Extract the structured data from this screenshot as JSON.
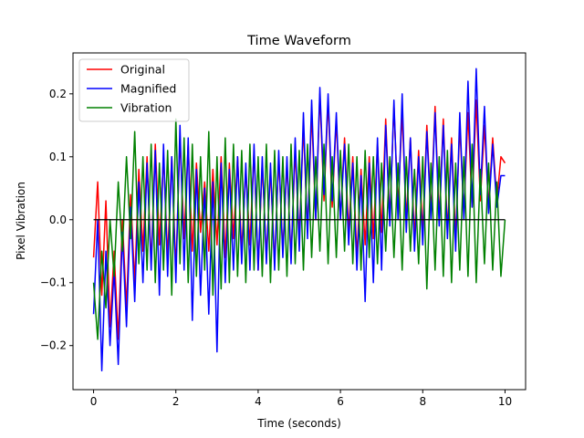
{
  "chart_data": {
    "type": "line",
    "title": "Time Waveform",
    "xlabel": "Time (seconds)",
    "ylabel": "Pixel Vibration",
    "xlim": [
      -0.5,
      10.5
    ],
    "ylim": [
      -0.27,
      0.265
    ],
    "xticks": [
      0,
      2,
      4,
      6,
      8,
      10
    ],
    "yticks": [
      -0.2,
      -0.1,
      0.0,
      0.1,
      0.2
    ],
    "xtick_labels": [
      "0",
      "2",
      "4",
      "6",
      "8",
      "10"
    ],
    "ytick_labels": [
      "−0.2",
      "−0.1",
      "0.0",
      "0.1",
      "0.2"
    ],
    "legend_position": "top-left",
    "baseline": {
      "name": "zero-line",
      "y": 0,
      "color": "#000000"
    },
    "series": [
      {
        "name": "Original",
        "color": "#ff0000",
        "x": [
          0,
          0.1,
          0.2,
          0.3,
          0.4,
          0.5,
          0.6,
          0.7,
          0.8,
          0.9,
          1,
          1.1,
          1.2,
          1.3,
          1.4,
          1.5,
          1.6,
          1.7,
          1.8,
          1.9,
          2,
          2.1,
          2.2,
          2.3,
          2.4,
          2.5,
          2.6,
          2.7,
          2.8,
          2.9,
          3,
          3.1,
          3.2,
          3.3,
          3.4,
          3.5,
          3.6,
          3.7,
          3.8,
          3.9,
          4,
          4.1,
          4.2,
          4.3,
          4.4,
          4.5,
          4.6,
          4.7,
          4.8,
          4.9,
          5,
          5.1,
          5.2,
          5.3,
          5.4,
          5.5,
          5.6,
          5.7,
          5.8,
          5.9,
          6,
          6.1,
          6.2,
          6.3,
          6.4,
          6.5,
          6.6,
          6.7,
          6.8,
          6.9,
          7,
          7.1,
          7.2,
          7.3,
          7.4,
          7.5,
          7.6,
          7.7,
          7.8,
          7.9,
          8,
          8.1,
          8.2,
          8.3,
          8.4,
          8.5,
          8.6,
          8.7,
          8.8,
          8.9,
          9,
          9.1,
          9.2,
          9.3,
          9.4,
          9.5,
          9.6,
          9.7,
          9.8,
          9.9,
          10
        ],
        "y": [
          -0.06,
          0.06,
          -0.12,
          0.03,
          -0.17,
          -0.05,
          -0.19,
          0.0,
          -0.14,
          0.04,
          -0.1,
          0.08,
          -0.05,
          0.1,
          -0.07,
          0.12,
          -0.04,
          0.1,
          -0.06,
          0.1,
          -0.08,
          0.13,
          -0.03,
          0.12,
          -0.05,
          0.09,
          -0.02,
          0.06,
          -0.05,
          0.08,
          -0.04,
          0.1,
          -0.06,
          0.09,
          -0.03,
          0.1,
          -0.05,
          0.08,
          -0.04,
          0.11,
          -0.08,
          0.09,
          -0.06,
          0.08,
          -0.07,
          0.1,
          -0.05,
          0.09,
          -0.06,
          0.11,
          -0.03,
          0.15,
          -0.02,
          0.17,
          0.0,
          0.2,
          0.03,
          0.19,
          0.02,
          0.16,
          0.0,
          0.13,
          -0.02,
          0.1,
          -0.06,
          0.08,
          -0.04,
          0.1,
          -0.03,
          0.12,
          -0.02,
          0.16,
          0.0,
          0.18,
          0.02,
          0.17,
          0.0,
          0.13,
          -0.03,
          0.11,
          -0.02,
          0.15,
          0.01,
          0.18,
          0.0,
          0.16,
          -0.02,
          0.13,
          -0.03,
          0.15,
          0.01,
          0.17,
          0.02,
          0.19,
          0.03,
          0.15,
          0.02,
          0.13,
          0.03,
          0.1,
          0.09
        ]
      },
      {
        "name": "Magnified",
        "color": "#0000ff",
        "x": [
          0,
          0.1,
          0.2,
          0.3,
          0.4,
          0.5,
          0.6,
          0.7,
          0.8,
          0.9,
          1,
          1.1,
          1.2,
          1.3,
          1.4,
          1.5,
          1.6,
          1.7,
          1.8,
          1.9,
          2,
          2.1,
          2.2,
          2.3,
          2.4,
          2.5,
          2.6,
          2.7,
          2.8,
          2.9,
          3,
          3.1,
          3.2,
          3.3,
          3.4,
          3.5,
          3.6,
          3.7,
          3.8,
          3.9,
          4,
          4.1,
          4.2,
          4.3,
          4.4,
          4.5,
          4.6,
          4.7,
          4.8,
          4.9,
          5,
          5.1,
          5.2,
          5.3,
          5.4,
          5.5,
          5.6,
          5.7,
          5.8,
          5.9,
          6,
          6.1,
          6.2,
          6.3,
          6.4,
          6.5,
          6.6,
          6.7,
          6.8,
          6.9,
          7,
          7.1,
          7.2,
          7.3,
          7.4,
          7.5,
          7.6,
          7.7,
          7.8,
          7.9,
          8,
          8.1,
          8.2,
          8.3,
          8.4,
          8.5,
          8.6,
          8.7,
          8.8,
          8.9,
          9,
          9.1,
          9.2,
          9.3,
          9.4,
          9.5,
          9.6,
          9.7,
          9.8,
          9.9,
          10
        ],
        "y": [
          -0.15,
          0.0,
          -0.24,
          -0.05,
          -0.2,
          -0.08,
          -0.23,
          -0.02,
          -0.17,
          0.02,
          -0.13,
          0.06,
          -0.1,
          0.09,
          -0.08,
          0.11,
          -0.12,
          0.12,
          -0.09,
          0.1,
          -0.1,
          0.15,
          -0.08,
          0.13,
          -0.16,
          0.08,
          -0.12,
          0.05,
          -0.15,
          0.06,
          -0.21,
          0.09,
          -0.1,
          0.08,
          -0.08,
          0.1,
          -0.07,
          0.09,
          -0.08,
          0.12,
          -0.08,
          0.1,
          -0.07,
          0.09,
          -0.08,
          0.11,
          -0.06,
          0.1,
          -0.07,
          0.13,
          -0.05,
          0.17,
          -0.03,
          0.19,
          0.0,
          0.21,
          0.04,
          0.2,
          0.03,
          0.17,
          0.0,
          0.12,
          -0.04,
          0.09,
          -0.08,
          0.07,
          -0.13,
          0.09,
          -0.1,
          0.13,
          -0.08,
          0.15,
          -0.01,
          0.19,
          0.0,
          0.2,
          -0.02,
          0.13,
          -0.05,
          0.1,
          -0.04,
          0.14,
          0.0,
          0.17,
          -0.01,
          0.15,
          -0.03,
          0.12,
          -0.05,
          0.17,
          0.0,
          0.22,
          0.02,
          0.24,
          0.04,
          0.18,
          0.01,
          0.12,
          0.02,
          0.07,
          0.07
        ]
      },
      {
        "name": "Vibration",
        "color": "#008000",
        "x": [
          0,
          0.1,
          0.2,
          0.3,
          0.4,
          0.5,
          0.6,
          0.7,
          0.8,
          0.9,
          1,
          1.1,
          1.2,
          1.3,
          1.4,
          1.5,
          1.6,
          1.7,
          1.8,
          1.9,
          2,
          2.1,
          2.2,
          2.3,
          2.4,
          2.5,
          2.6,
          2.7,
          2.8,
          2.9,
          3,
          3.1,
          3.2,
          3.3,
          3.4,
          3.5,
          3.6,
          3.7,
          3.8,
          3.9,
          4,
          4.1,
          4.2,
          4.3,
          4.4,
          4.5,
          4.6,
          4.7,
          4.8,
          4.9,
          5,
          5.1,
          5.2,
          5.3,
          5.4,
          5.5,
          5.6,
          5.7,
          5.8,
          5.9,
          6,
          6.1,
          6.2,
          6.3,
          6.4,
          6.5,
          6.6,
          6.7,
          6.8,
          6.9,
          7,
          7.1,
          7.2,
          7.3,
          7.4,
          7.5,
          7.6,
          7.7,
          7.8,
          7.9,
          8,
          8.1,
          8.2,
          8.3,
          8.4,
          8.5,
          8.6,
          8.7,
          8.8,
          8.9,
          9,
          9.1,
          9.2,
          9.3,
          9.4,
          9.5,
          9.6,
          9.7,
          9.8,
          9.9,
          10
        ],
        "y": [
          -0.1,
          -0.19,
          -0.05,
          -0.14,
          0.0,
          -0.09,
          0.06,
          -0.05,
          0.1,
          -0.03,
          0.14,
          -0.07,
          0.1,
          -0.08,
          0.12,
          -0.1,
          0.09,
          -0.08,
          0.11,
          -0.12,
          0.16,
          -0.07,
          0.13,
          -0.1,
          0.12,
          -0.09,
          0.1,
          -0.08,
          0.14,
          -0.12,
          0.1,
          -0.11,
          0.13,
          -0.1,
          0.12,
          -0.09,
          0.11,
          -0.1,
          0.12,
          -0.08,
          0.1,
          -0.09,
          0.12,
          -0.1,
          0.11,
          -0.08,
          0.1,
          -0.09,
          0.12,
          -0.07,
          0.11,
          -0.08,
          0.12,
          -0.06,
          0.1,
          -0.05,
          0.12,
          -0.07,
          0.1,
          -0.06,
          0.11,
          -0.05,
          0.12,
          -0.07,
          0.1,
          -0.08,
          0.11,
          -0.06,
          0.1,
          -0.07,
          0.09,
          -0.05,
          0.1,
          -0.06,
          0.09,
          -0.08,
          0.1,
          -0.05,
          0.08,
          -0.07,
          0.1,
          -0.11,
          0.09,
          -0.08,
          0.1,
          -0.09,
          0.11,
          -0.1,
          0.09,
          -0.08,
          0.1,
          -0.09,
          0.12,
          -0.1,
          0.08,
          -0.07,
          0.09,
          -0.08,
          0.06,
          -0.09,
          0.0
        ]
      }
    ]
  }
}
